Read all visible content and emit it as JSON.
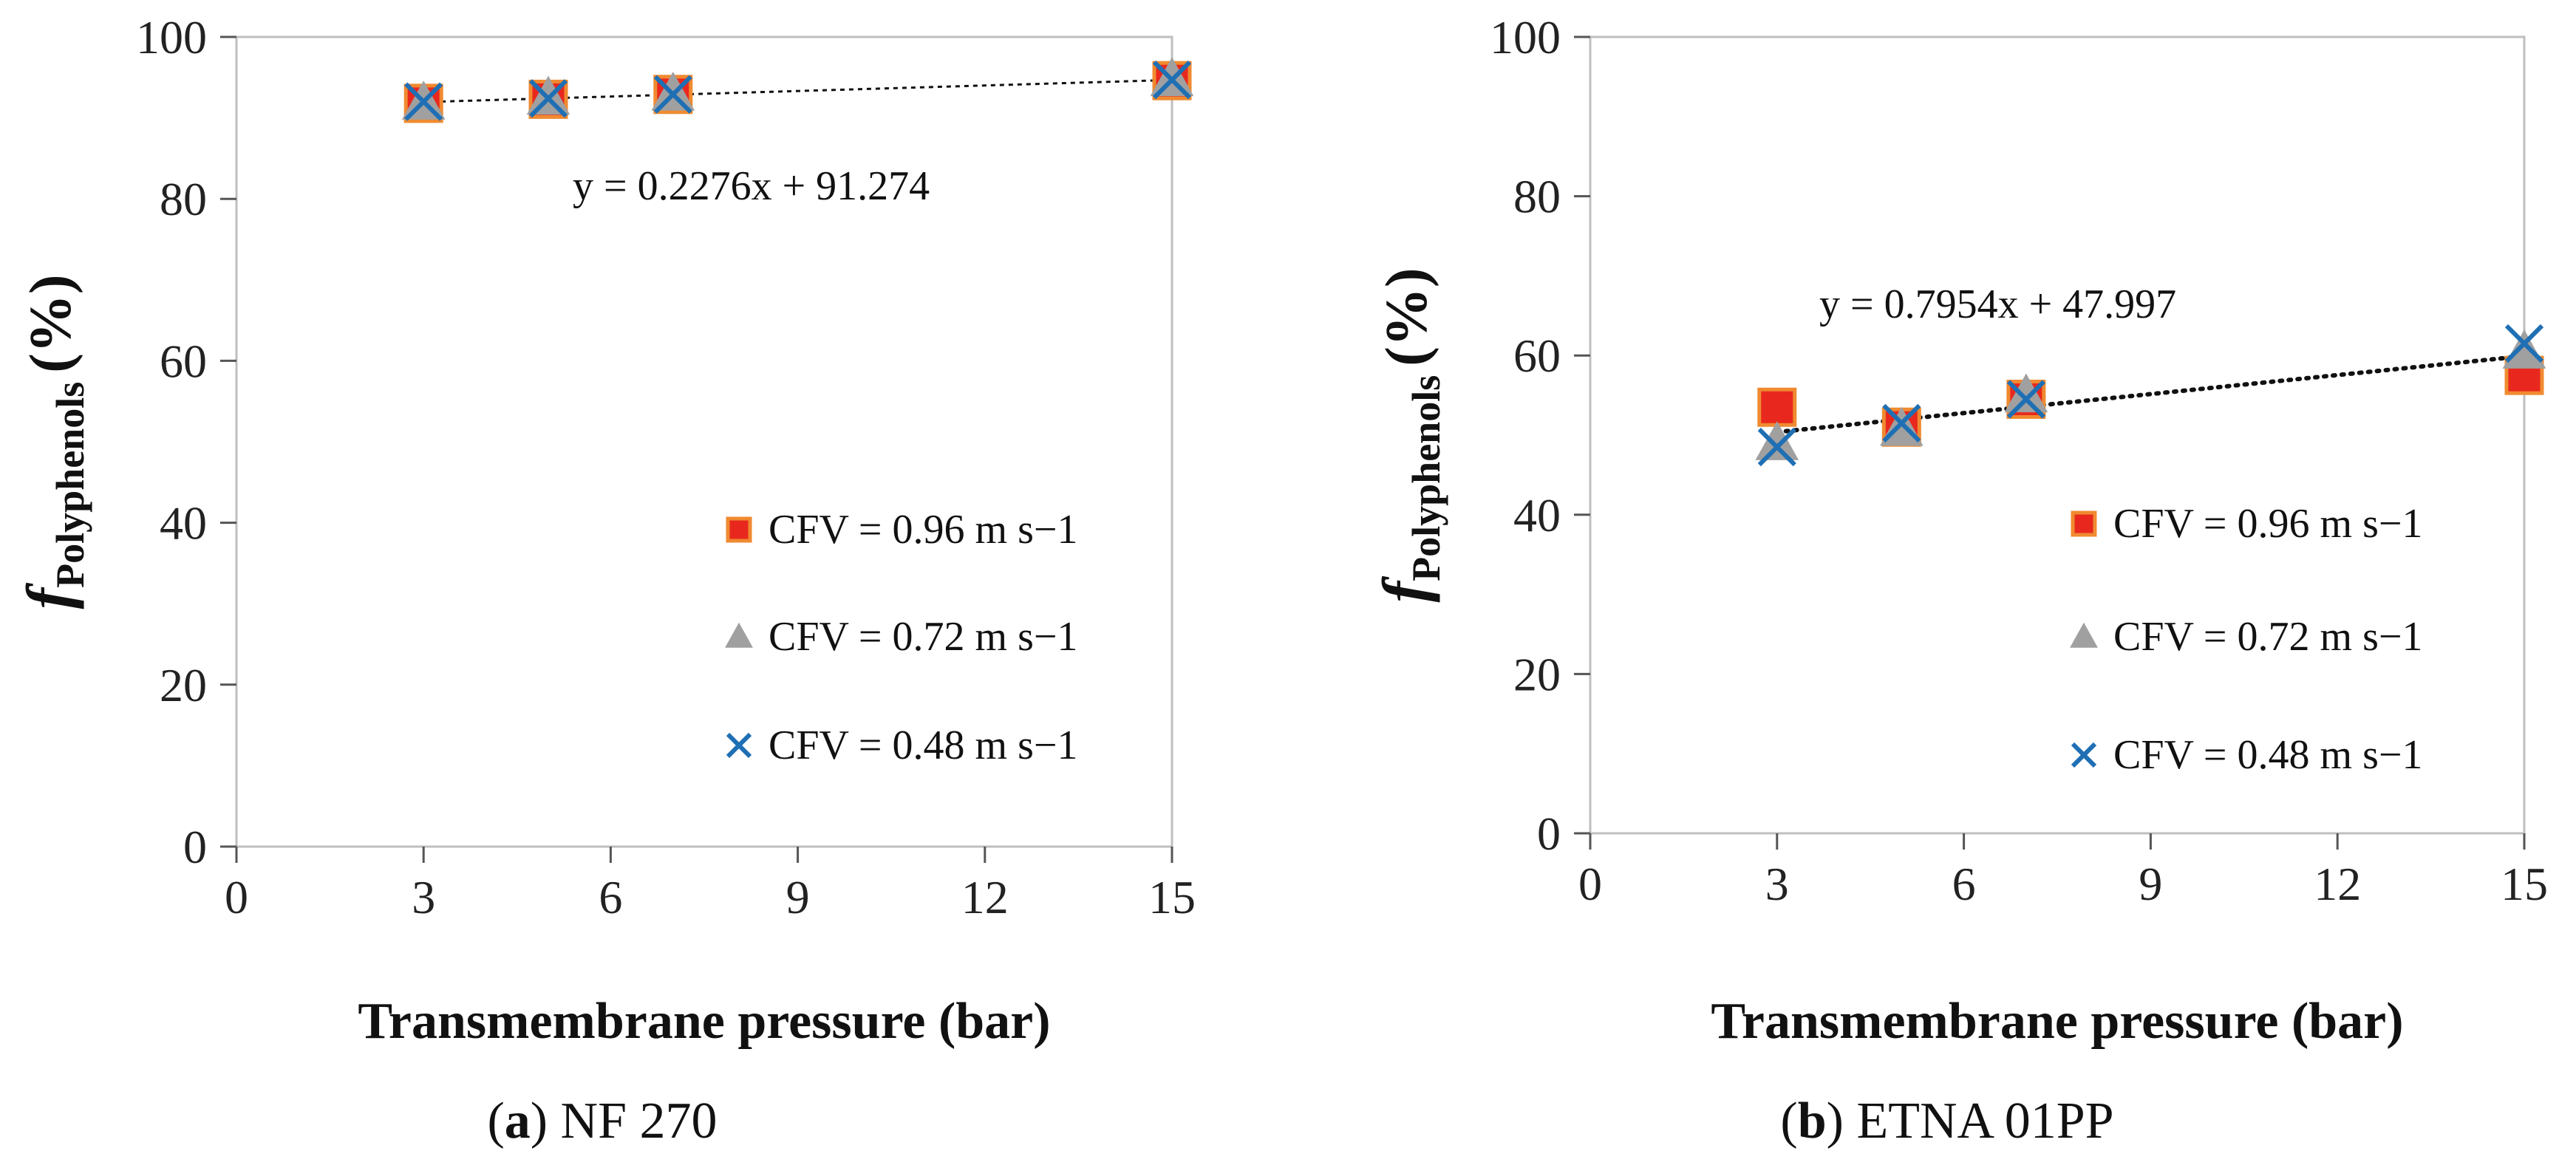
{
  "chart_data": [
    {
      "type": "scatter",
      "caption_letter": "a",
      "caption_name": "NF 270",
      "xlabel": "Transmembrane pressure (bar)",
      "ylabel_f": "f",
      "ylabel_sub": "Polyphenols",
      "ylabel_unit": "(%)",
      "xlim": [
        0,
        15
      ],
      "ylim": [
        0,
        100
      ],
      "xticks": [
        0,
        3,
        6,
        9,
        12,
        15
      ],
      "yticks": [
        0,
        20,
        40,
        60,
        80,
        100
      ],
      "series": [
        {
          "name": "CFV = 0.96 m s−1",
          "marker": "square",
          "color": "#e8281e",
          "edge": "#f08a30",
          "x": [
            3,
            5,
            7,
            15
          ],
          "y": [
            91.8,
            92.3,
            92.9,
            94.6
          ]
        },
        {
          "name": "CFV = 0.72 m s−1",
          "marker": "triangle",
          "color": "#a0a0a0",
          "x": [
            3,
            5,
            7,
            15
          ],
          "y": [
            91.9,
            92.5,
            93.0,
            94.8
          ]
        },
        {
          "name": "CFV = 0.48 m s−1",
          "marker": "x",
          "color": "#1f6fb4",
          "x": [
            3,
            5,
            7,
            15
          ],
          "y": [
            92.0,
            92.4,
            92.9,
            94.7
          ]
        }
      ],
      "trendline": {
        "slope": 0.2276,
        "intercept": 91.274,
        "x_range": [
          3,
          15
        ],
        "label": "y = 0.2276x + 91.274"
      }
    },
    {
      "type": "scatter",
      "caption_letter": "b",
      "caption_name": "ETNA 01PP",
      "xlabel": "Transmembrane pressure (bar)",
      "ylabel_f": "f",
      "ylabel_sub": "Polyphenols",
      "ylabel_unit": "(%)",
      "xlim": [
        0,
        15
      ],
      "ylim": [
        0,
        100
      ],
      "xticks": [
        0,
        3,
        6,
        9,
        12,
        15
      ],
      "yticks": [
        0,
        20,
        40,
        60,
        80,
        100
      ],
      "series": [
        {
          "name": "CFV = 0.96 m s−1",
          "marker": "square",
          "color": "#e8281e",
          "edge": "#f08a30",
          "x": [
            3,
            5,
            7,
            15
          ],
          "y": [
            53.5,
            51.0,
            54.5,
            57.5
          ]
        },
        {
          "name": "CFV = 0.72 m s−1",
          "marker": "triangle",
          "color": "#a0a0a0",
          "x": [
            3,
            5,
            7,
            15
          ],
          "y": [
            49.0,
            50.8,
            55.0,
            60.5
          ]
        },
        {
          "name": "CFV = 0.48 m s−1",
          "marker": "x",
          "color": "#1f6fb4",
          "x": [
            3,
            5,
            7,
            15
          ],
          "y": [
            48.5,
            51.5,
            54.5,
            61.5
          ]
        }
      ],
      "trendline": {
        "slope": 0.7954,
        "intercept": 47.997,
        "x_range": [
          3,
          15
        ],
        "label": "y = 0.7954x + 47.997"
      }
    }
  ]
}
